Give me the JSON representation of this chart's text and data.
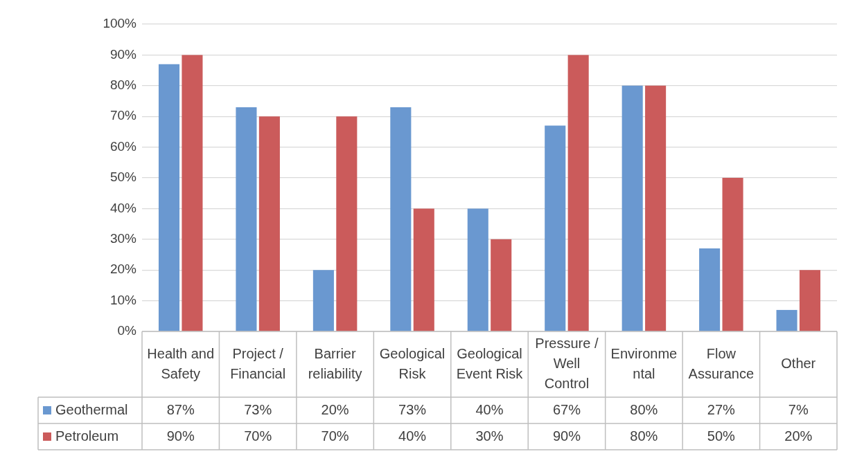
{
  "chart_data": {
    "type": "bar",
    "categories": [
      "Health and Safety",
      "Project / Financial",
      "Barrier reliability",
      "Geological Risk",
      "Geological Event Risk",
      "Pressure / Well Control",
      "Environmental",
      "Flow Assurance",
      "Other"
    ],
    "series": [
      {
        "name": "Geothermal",
        "color": "#6a98d0",
        "values": [
          87,
          73,
          20,
          73,
          40,
          67,
          80,
          27,
          7
        ],
        "value_labels": [
          "87%",
          "73%",
          "20%",
          "73%",
          "40%",
          "67%",
          "80%",
          "27%",
          "7%"
        ]
      },
      {
        "name": "Petroleum",
        "color": "#cb5b5b",
        "values": [
          90,
          70,
          70,
          40,
          30,
          90,
          80,
          50,
          20
        ],
        "value_labels": [
          "90%",
          "70%",
          "70%",
          "40%",
          "30%",
          "90%",
          "80%",
          "50%",
          "20%"
        ]
      }
    ],
    "ylim": [
      0,
      100
    ],
    "yticks": [
      {
        "value": 0,
        "label": "0%"
      },
      {
        "value": 10,
        "label": "10%"
      },
      {
        "value": 20,
        "label": "20%"
      },
      {
        "value": 30,
        "label": "30%"
      },
      {
        "value": 40,
        "label": "40%"
      },
      {
        "value": 50,
        "label": "50%"
      },
      {
        "value": 60,
        "label": "60%"
      },
      {
        "value": 70,
        "label": "70%"
      },
      {
        "value": 80,
        "label": "80%"
      },
      {
        "value": 90,
        "label": "90%"
      },
      {
        "value": 100,
        "label": "100%"
      }
    ],
    "grid": "y",
    "legend": "left"
  }
}
